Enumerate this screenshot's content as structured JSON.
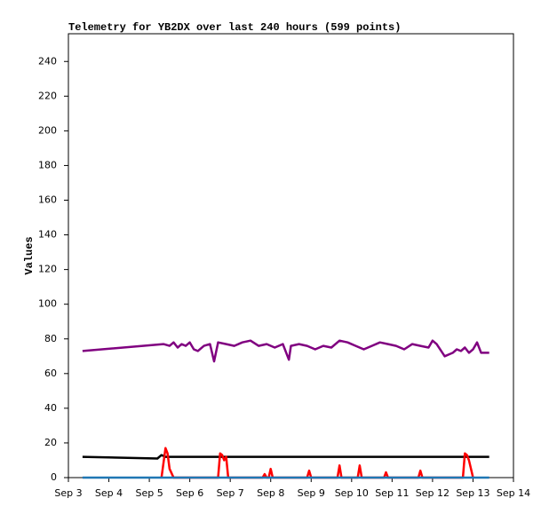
{
  "chart_data": {
    "type": "line",
    "title": "Telemetry for YB2DX over last 240 hours (599 points)",
    "y_label": "Values",
    "xlim": [
      3,
      14
    ],
    "xticks": [
      {
        "value": 3,
        "label": "Sep 3"
      },
      {
        "value": 4,
        "label": "Sep 4"
      },
      {
        "value": 5,
        "label": "Sep 5"
      },
      {
        "value": 6,
        "label": "Sep 6"
      },
      {
        "value": 7,
        "label": "Sep 7"
      },
      {
        "value": 8,
        "label": "Sep 8"
      },
      {
        "value": 9,
        "label": "Sep 9"
      },
      {
        "value": 10,
        "label": "Sep 10"
      },
      {
        "value": 11,
        "label": "Sep 11"
      },
      {
        "value": 12,
        "label": "Sep 12"
      },
      {
        "value": 13,
        "label": "Sep 13"
      },
      {
        "value": 14,
        "label": "Sep 14"
      }
    ],
    "ylim": [
      0,
      256
    ],
    "yticks": [
      0,
      20,
      40,
      60,
      80,
      100,
      120,
      140,
      160,
      180,
      200,
      220,
      240
    ],
    "grid": false,
    "series": [
      {
        "color": "#800080",
        "x": [
          3.35,
          5.35,
          5.5,
          5.6,
          5.7,
          5.8,
          5.9,
          6.0,
          6.1,
          6.2,
          6.35,
          6.5,
          6.6,
          6.7,
          6.9,
          7.1,
          7.3,
          7.5,
          7.7,
          7.9,
          8.1,
          8.3,
          8.45,
          8.5,
          8.7,
          8.9,
          9.1,
          9.3,
          9.5,
          9.7,
          9.9,
          10.1,
          10.3,
          10.5,
          10.7,
          10.9,
          11.1,
          11.3,
          11.5,
          11.7,
          11.9,
          12.0,
          12.1,
          12.3,
          12.5,
          12.6,
          12.7,
          12.8,
          12.9,
          13.0,
          13.1,
          13.2,
          13.4
        ],
        "values": [
          73,
          77,
          76,
          78,
          75,
          77,
          76,
          78,
          74,
          73,
          76,
          77,
          67,
          78,
          77,
          76,
          78,
          79,
          76,
          77,
          75,
          77,
          68,
          76,
          77,
          76,
          74,
          76,
          75,
          79,
          78,
          76,
          74,
          76,
          78,
          77,
          76,
          74,
          77,
          76,
          75,
          79,
          77,
          70,
          72,
          74,
          73,
          75,
          72,
          74,
          78,
          72,
          72
        ]
      },
      {
        "color": "#000000",
        "x": [
          3.35,
          5.2,
          5.3,
          5.4,
          6.0,
          7.0,
          8.0,
          9.0,
          10.0,
          11.0,
          12.0,
          13.4
        ],
        "values": [
          12,
          11,
          13,
          12,
          12,
          12,
          12,
          12,
          12,
          12,
          12,
          12
        ]
      },
      {
        "color": "#ff0000",
        "x": [
          5.3,
          5.4,
          5.45,
          5.5,
          5.6,
          6.7,
          6.75,
          6.8,
          6.85,
          6.9,
          6.95,
          7.8,
          7.85,
          7.9,
          7.95,
          8.0,
          8.05,
          8.9,
          8.95,
          9.0,
          9.65,
          9.7,
          9.75,
          10.15,
          10.2,
          10.25,
          10.8,
          10.85,
          10.9,
          11.65,
          11.7,
          11.75,
          12.75,
          12.8,
          12.85,
          12.9,
          12.95,
          13.0
        ],
        "values": [
          0,
          17,
          14,
          5,
          0,
          0,
          14,
          13,
          10,
          12,
          0,
          0,
          2,
          0,
          0,
          5,
          0,
          0,
          4,
          0,
          0,
          7,
          0,
          0,
          7,
          0,
          0,
          3,
          0,
          0,
          4,
          0,
          0,
          14,
          13,
          10,
          5,
          0
        ]
      },
      {
        "color": "#1f77b4",
        "x": [
          3.35,
          13.4
        ],
        "values": [
          0,
          0
        ]
      }
    ]
  }
}
